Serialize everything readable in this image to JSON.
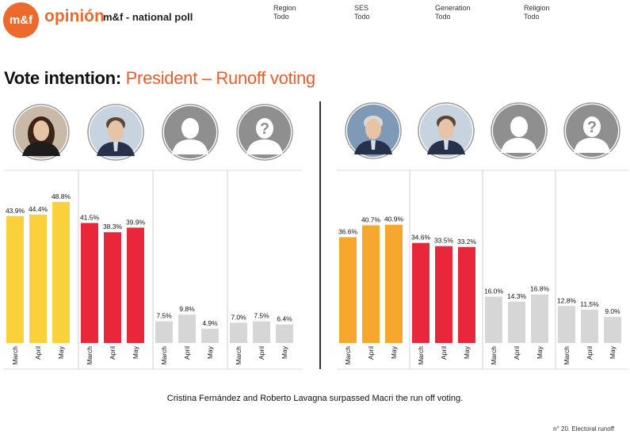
{
  "header": {
    "logo_text": "m&f",
    "brand": "opinión",
    "poll_name": "m&f - national poll",
    "filters": [
      {
        "label": "Region",
        "value": "Todo"
      },
      {
        "label": "SES",
        "value": "Todo"
      },
      {
        "label": "Generation",
        "value": "Todo"
      },
      {
        "label": "Religion",
        "value": "Todo"
      }
    ]
  },
  "title": {
    "prefix": "Vote intention:",
    "accent": "President – Runoff voting"
  },
  "caption": "Cristina Fernández and Roberto Lavagna surpassed Macri the run off voting.",
  "footnote": "n° 20. Electoral runoff",
  "colors": {
    "yellow": "#fbd13b",
    "orange": "#f7a72e",
    "red": "#e8283a",
    "gray": "#d6d6d6",
    "accent": "#ee5a2a"
  },
  "chart_data": [
    {
      "type": "bar",
      "categories": [
        "March",
        "April",
        "May"
      ],
      "groups": [
        {
          "avatar": "cristina-fernandez-photo",
          "color": "yellow",
          "values": [
            43.9,
            44.4,
            48.8
          ],
          "labels": [
            "43.9%",
            "44.4%",
            "48.8%"
          ]
        },
        {
          "avatar": "mauricio-macri-photo",
          "color": "red",
          "values": [
            41.5,
            38.3,
            39.9
          ],
          "labels": [
            "41.5%",
            "38.3%",
            "39.9%"
          ]
        },
        {
          "avatar": "blank-person-silhouette",
          "color": "gray",
          "values": [
            7.5,
            9.8,
            4.9
          ],
          "labels": [
            "7.5%",
            "9.8%",
            "4.9%"
          ]
        },
        {
          "avatar": "undecided-question-silhouette",
          "color": "gray",
          "values": [
            7.0,
            7.5,
            6.4
          ],
          "labels": [
            "7.0%",
            "7.5%",
            "6.4%"
          ]
        }
      ],
      "ylim": [
        0,
        60
      ],
      "grid": false
    },
    {
      "type": "bar",
      "categories": [
        "March",
        "April",
        "May"
      ],
      "groups": [
        {
          "avatar": "roberto-lavagna-photo",
          "color": "orange",
          "values": [
            36.6,
            40.7,
            40.9
          ],
          "labels": [
            "36.6%",
            "40.7%",
            "40.9%"
          ]
        },
        {
          "avatar": "mauricio-macri-photo",
          "color": "red",
          "values": [
            34.6,
            33.5,
            33.2
          ],
          "labels": [
            "34.6%",
            "33.5%",
            "33.2%"
          ]
        },
        {
          "avatar": "blank-person-silhouette",
          "color": "gray",
          "values": [
            16.0,
            14.3,
            16.8
          ],
          "labels": [
            "16.0%",
            "14.3%",
            "16.8%"
          ]
        },
        {
          "avatar": "undecided-question-silhouette",
          "color": "gray",
          "values": [
            12.8,
            11.5,
            9.0
          ],
          "labels": [
            "12.8%",
            "11.5%",
            "9.0%"
          ]
        }
      ],
      "ylim": [
        0,
        60
      ],
      "grid": false
    }
  ]
}
